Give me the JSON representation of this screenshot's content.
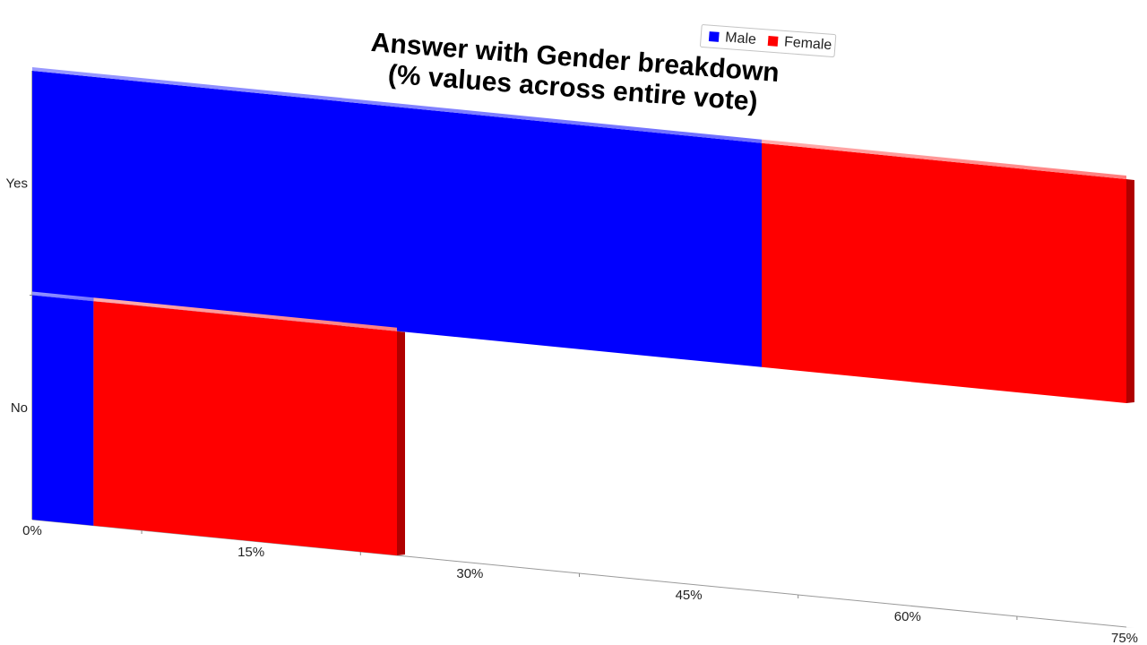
{
  "chart_data": {
    "type": "bar",
    "orientation": "horizontal",
    "stacked": true,
    "title": "Answer with Gender breakdown\n(% values across entire vote)",
    "categories": [
      "Yes",
      "No"
    ],
    "series": [
      {
        "name": "Male",
        "color": "#0000ff",
        "values": [
          50,
          4.2
        ]
      },
      {
        "name": "Female",
        "color": "#ff0000",
        "values": [
          25,
          20.8
        ]
      }
    ],
    "xlabel": "",
    "ylabel": "",
    "xlim": [
      0,
      75
    ],
    "x_tick_labels": [
      "0%",
      "15%",
      "30%",
      "45%",
      "60%",
      "75%"
    ],
    "grid": false,
    "legend_position": "top-right",
    "style": "3d-perspective"
  }
}
